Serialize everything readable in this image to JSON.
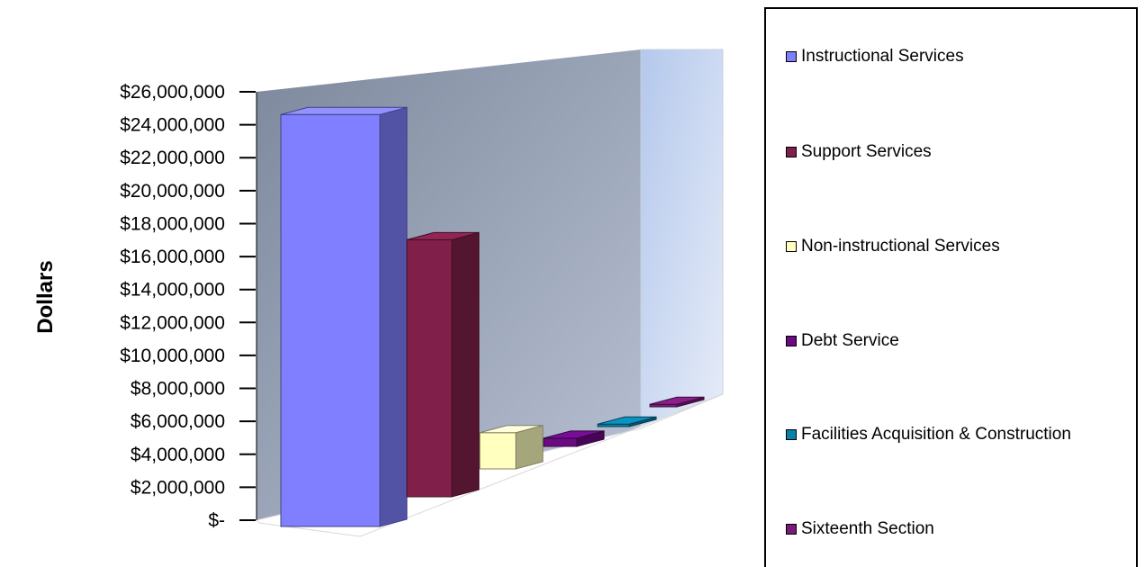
{
  "chart_data": {
    "type": "bar",
    "categories": [
      "Instructional Services",
      "Support Services",
      "Non-instructional Services",
      "Debt Service",
      "Facilities Acquisition & Construction",
      "Sixteenth Section"
    ],
    "values": [
      25000000,
      15600000,
      2200000,
      500000,
      150000,
      150000
    ],
    "ylabel": "Dollars",
    "ylim": [
      0,
      26000000
    ],
    "yticks": [
      "$-",
      "$2,000,000",
      "$4,000,000",
      "$6,000,000",
      "$8,000,000",
      "$10,000,000",
      "$12,000,000",
      "$14,000,000",
      "$16,000,000",
      "$18,000,000",
      "$20,000,000",
      "$22,000,000",
      "$24,000,000",
      "$26,000,000"
    ],
    "colors": [
      "#7f7fff",
      "#80204a",
      "#ffffc0",
      "#6a0b82",
      "#0a80a8",
      "#7a1a7a"
    ],
    "legend_position": "right",
    "grid": false,
    "style": "3d-clustered-column"
  }
}
